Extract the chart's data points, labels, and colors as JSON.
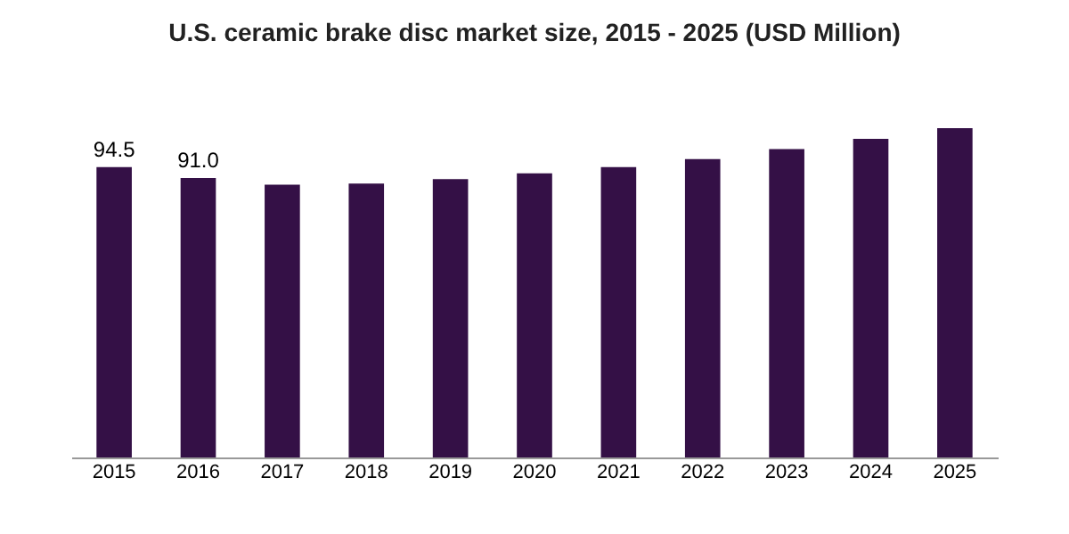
{
  "chart_data": {
    "type": "bar",
    "title": "U.S. ceramic brake disc market size, 2015 - 2025 (USD Million)",
    "categories": [
      "2015",
      "2016",
      "2017",
      "2018",
      "2019",
      "2020",
      "2021",
      "2022",
      "2023",
      "2024",
      "2025"
    ],
    "values": [
      94.5,
      91.0,
      88.8,
      89.2,
      90.6,
      92.5,
      94.5,
      97.1,
      100.4,
      103.7,
      107.2
    ],
    "value_labels": [
      "94.5",
      "91.0",
      null,
      null,
      null,
      null,
      null,
      null,
      null,
      null,
      null
    ],
    "color": "#341046",
    "grid": false
  }
}
